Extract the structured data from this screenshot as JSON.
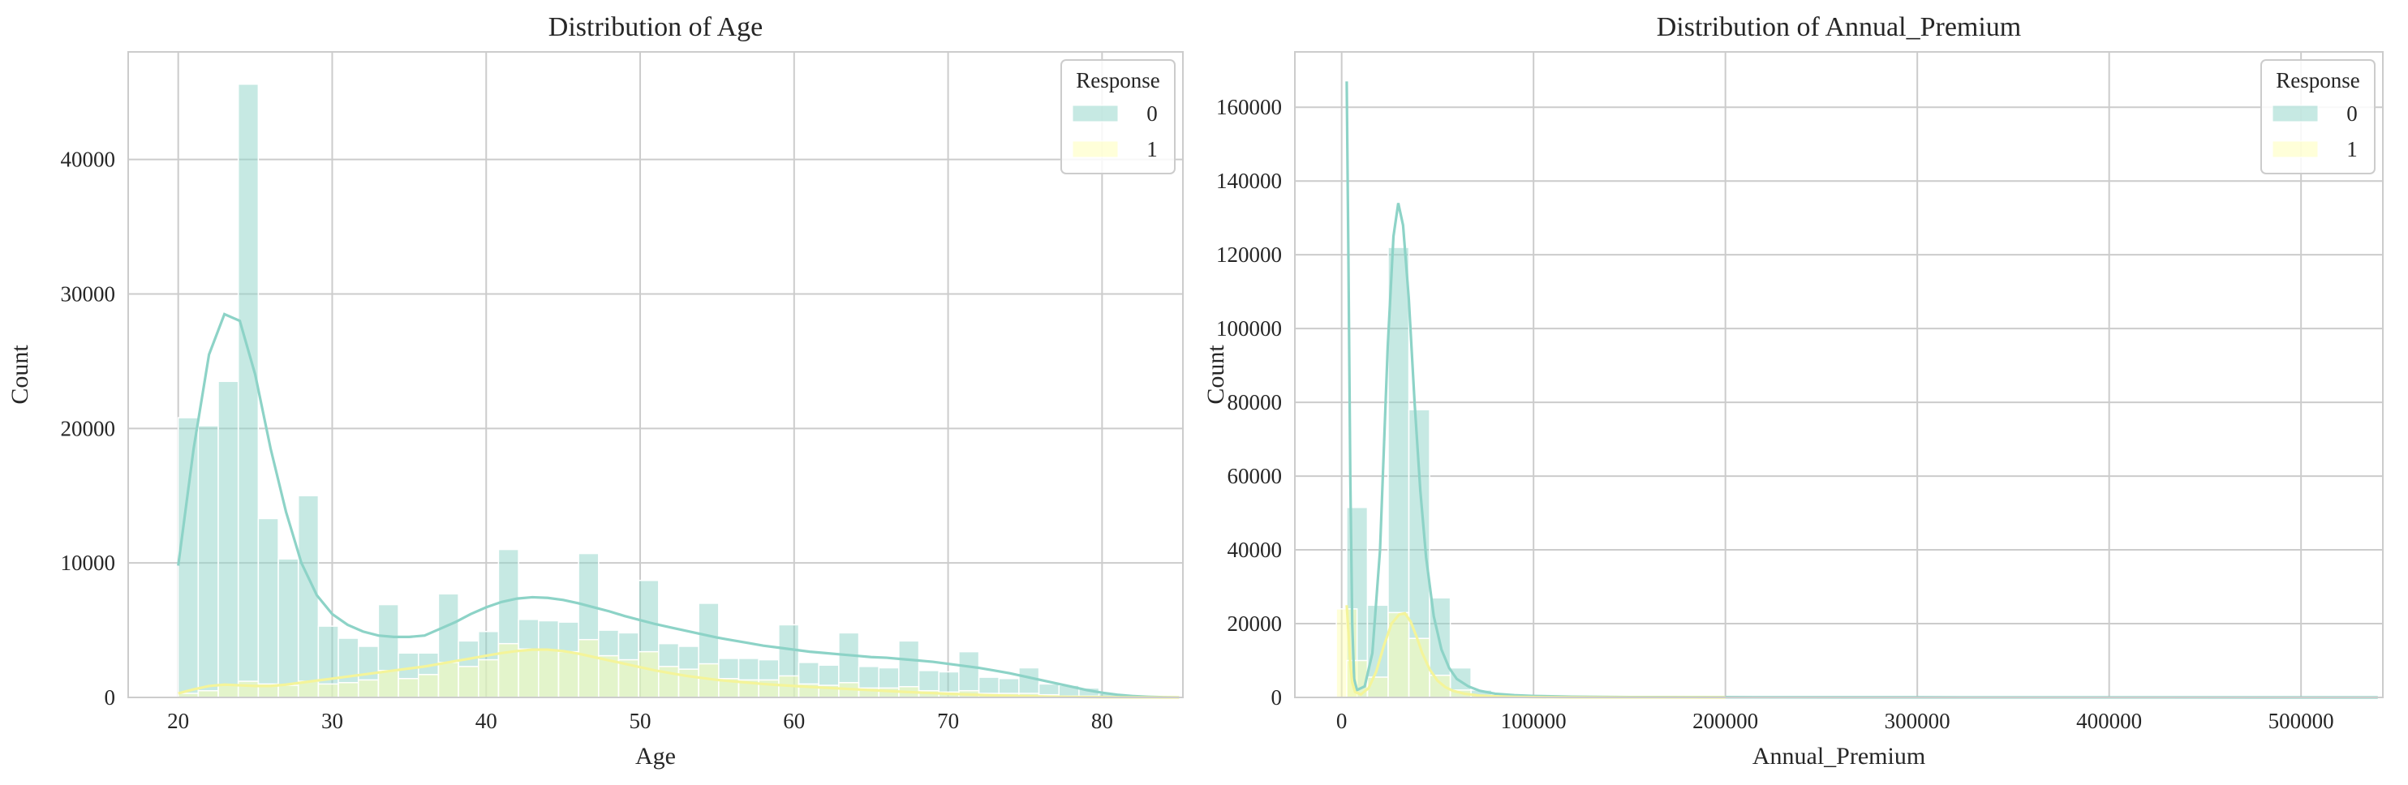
{
  "chart_data": [
    {
      "type": "histogram",
      "title": "Distribution of Age",
      "xlabel": "Age",
      "ylabel": "Count",
      "xlim": [
        16.75,
        85.25
      ],
      "ylim": [
        0,
        48000
      ],
      "xticks": [
        20,
        30,
        40,
        50,
        60,
        70,
        80
      ],
      "yticks": [
        0,
        10000,
        20000,
        30000,
        40000
      ],
      "xtick_labels": [
        "20",
        "30",
        "40",
        "50",
        "60",
        "70",
        "80"
      ],
      "ytick_labels": [
        "0",
        "10000",
        "20000",
        "30000",
        "40000"
      ],
      "grid": true,
      "legend": {
        "title": "Response",
        "position": "top-right",
        "entries": [
          "0",
          "1"
        ]
      },
      "bin_width": 1.3,
      "series": [
        {
          "label": "0",
          "color": "#8dd3c7",
          "x": [
            20.65,
            21.95,
            23.25,
            24.55,
            25.85,
            27.15,
            28.45,
            29.75,
            31.05,
            32.35,
            33.65,
            34.95,
            36.25,
            37.55,
            38.85,
            40.15,
            41.45,
            42.75,
            44.05,
            45.35,
            46.65,
            47.95,
            49.25,
            50.55,
            51.85,
            53.15,
            54.45,
            55.75,
            57.05,
            58.35,
            59.65,
            60.95,
            62.25,
            63.55,
            64.85,
            66.15,
            67.45,
            68.75,
            70.05,
            71.35,
            72.65,
            73.95,
            75.25,
            76.55,
            77.85,
            79.15,
            80.45,
            81.75,
            83.05,
            84.35
          ],
          "counts": [
            20800,
            20200,
            23500,
            45600,
            13300,
            10300,
            15000,
            5300,
            4400,
            3800,
            6900,
            3300,
            3300,
            7700,
            4200,
            4900,
            11000,
            5800,
            5700,
            5600,
            10700,
            5000,
            4800,
            8700,
            4000,
            3800,
            7000,
            2900,
            2900,
            2800,
            5400,
            2600,
            2400,
            4800,
            2300,
            2200,
            4200,
            2000,
            1900,
            3400,
            1500,
            1400,
            2200,
            1000,
            900,
            700,
            300,
            100,
            40,
            10
          ],
          "kde": [
            [
              20,
              9800
            ],
            [
              21,
              18500
            ],
            [
              22,
              25500
            ],
            [
              23,
              28500
            ],
            [
              24,
              28000
            ],
            [
              25,
              24000
            ],
            [
              26,
              18500
            ],
            [
              27,
              13800
            ],
            [
              28,
              10000
            ],
            [
              29,
              7600
            ],
            [
              30,
              6200
            ],
            [
              31,
              5400
            ],
            [
              32,
              4900
            ],
            [
              33,
              4600
            ],
            [
              34,
              4500
            ],
            [
              35,
              4500
            ],
            [
              36,
              4600
            ],
            [
              37,
              5100
            ],
            [
              38,
              5600
            ],
            [
              39,
              6200
            ],
            [
              40,
              6700
            ],
            [
              41,
              7100
            ],
            [
              42,
              7350
            ],
            [
              43,
              7450
            ],
            [
              44,
              7400
            ],
            [
              45,
              7250
            ],
            [
              46,
              7000
            ],
            [
              47,
              6700
            ],
            [
              48,
              6400
            ],
            [
              49,
              6050
            ],
            [
              50,
              5750
            ],
            [
              51,
              5450
            ],
            [
              52,
              5200
            ],
            [
              53,
              4950
            ],
            [
              54,
              4700
            ],
            [
              55,
              4450
            ],
            [
              56,
              4250
            ],
            [
              57,
              4050
            ],
            [
              58,
              3850
            ],
            [
              59,
              3700
            ],
            [
              60,
              3550
            ],
            [
              61,
              3400
            ],
            [
              62,
              3300
            ],
            [
              63,
              3200
            ],
            [
              64,
              3100
            ],
            [
              65,
              3000
            ],
            [
              66,
              2950
            ],
            [
              67,
              2850
            ],
            [
              68,
              2750
            ],
            [
              69,
              2650
            ],
            [
              70,
              2500
            ],
            [
              71,
              2350
            ],
            [
              72,
              2200
            ],
            [
              73,
              2000
            ],
            [
              74,
              1800
            ],
            [
              75,
              1550
            ],
            [
              76,
              1300
            ],
            [
              77,
              1050
            ],
            [
              78,
              800
            ],
            [
              79,
              550
            ],
            [
              80,
              350
            ],
            [
              81,
              200
            ],
            [
              82,
              100
            ],
            [
              83,
              50
            ],
            [
              84,
              20
            ],
            [
              85,
              5
            ]
          ]
        },
        {
          "label": "1",
          "color": "#ffffb3",
          "x": [
            20.65,
            21.95,
            23.25,
            24.55,
            25.85,
            27.15,
            28.45,
            29.75,
            31.05,
            32.35,
            33.65,
            34.95,
            36.25,
            37.55,
            38.85,
            40.15,
            41.45,
            42.75,
            44.05,
            45.35,
            46.65,
            47.95,
            49.25,
            50.55,
            51.85,
            53.15,
            54.45,
            55.75,
            57.05,
            58.35,
            59.65,
            60.95,
            62.25,
            63.55,
            64.85,
            66.15,
            67.45,
            68.75,
            70.05,
            71.35,
            72.65,
            73.95,
            75.25,
            76.55,
            77.85,
            79.15,
            80.45,
            81.75,
            83.05,
            84.35
          ],
          "counts": [
            300,
            500,
            900,
            1200,
            1000,
            900,
            1200,
            1000,
            1100,
            1300,
            2000,
            1400,
            1700,
            2600,
            2300,
            2800,
            4000,
            3600,
            3500,
            3400,
            4300,
            3100,
            2800,
            3400,
            2300,
            2100,
            2500,
            1400,
            1300,
            1300,
            1600,
            1000,
            900,
            1100,
            700,
            700,
            800,
            500,
            400,
            500,
            300,
            300,
            300,
            200,
            100,
            100,
            50,
            20,
            10,
            5
          ],
          "kde": [
            [
              20,
              300
            ],
            [
              21,
              600
            ],
            [
              22,
              850
            ],
            [
              23,
              950
            ],
            [
              24,
              900
            ],
            [
              25,
              850
            ],
            [
              26,
              850
            ],
            [
              27,
              950
            ],
            [
              28,
              1100
            ],
            [
              29,
              1250
            ],
            [
              30,
              1400
            ],
            [
              31,
              1550
            ],
            [
              32,
              1700
            ],
            [
              33,
              1850
            ],
            [
              34,
              2000
            ],
            [
              35,
              2150
            ],
            [
              36,
              2300
            ],
            [
              37,
              2500
            ],
            [
              38,
              2700
            ],
            [
              39,
              2900
            ],
            [
              40,
              3100
            ],
            [
              41,
              3300
            ],
            [
              42,
              3450
            ],
            [
              43,
              3550
            ],
            [
              44,
              3550
            ],
            [
              45,
              3450
            ],
            [
              46,
              3250
            ],
            [
              47,
              3000
            ],
            [
              48,
              2750
            ],
            [
              49,
              2500
            ],
            [
              50,
              2250
            ],
            [
              51,
              2000
            ],
            [
              52,
              1800
            ],
            [
              53,
              1600
            ],
            [
              54,
              1450
            ],
            [
              55,
              1300
            ],
            [
              56,
              1200
            ],
            [
              57,
              1100
            ],
            [
              58,
              1000
            ],
            [
              59,
              920
            ],
            [
              60,
              850
            ],
            [
              61,
              780
            ],
            [
              62,
              720
            ],
            [
              63,
              660
            ],
            [
              64,
              600
            ],
            [
              65,
              540
            ],
            [
              66,
              480
            ],
            [
              67,
              420
            ],
            [
              68,
              370
            ],
            [
              69,
              320
            ],
            [
              70,
              270
            ],
            [
              71,
              230
            ],
            [
              72,
              190
            ],
            [
              73,
              150
            ],
            [
              74,
              120
            ],
            [
              75,
              90
            ],
            [
              76,
              70
            ],
            [
              77,
              50
            ],
            [
              78,
              35
            ],
            [
              79,
              25
            ],
            [
              80,
              15
            ],
            [
              81,
              10
            ],
            [
              82,
              5
            ],
            [
              83,
              3
            ],
            [
              84,
              2
            ],
            [
              85,
              1
            ]
          ]
        }
      ]
    },
    {
      "type": "histogram",
      "title": "Distribution of Annual_Premium",
      "xlabel": "Annual_Premium",
      "ylabel": "Count",
      "xlim": [
        -24390,
        542640
      ],
      "ylim": [
        0,
        175000
      ],
      "xticks": [
        0,
        100000,
        200000,
        300000,
        400000,
        500000
      ],
      "yticks": [
        0,
        20000,
        40000,
        60000,
        80000,
        100000,
        120000,
        140000,
        160000
      ],
      "xtick_labels": [
        "0",
        "100000",
        "200000",
        "300000",
        "400000",
        "500000"
      ],
      "ytick_labels": [
        "0",
        "20000",
        "40000",
        "60000",
        "80000",
        "100000",
        "120000",
        "140000",
        "160000"
      ],
      "grid": true,
      "legend": {
        "title": "Response",
        "position": "top-right",
        "entries": [
          "0",
          "1"
        ]
      },
      "bin_width": 10800,
      "series": [
        {
          "label": "0",
          "color": "#8dd3c7",
          "x": [
            8030,
            18830,
            29630,
            40430,
            51230,
            62030,
            72830,
            83630,
            94430,
            105230,
            116030,
            126830,
            137630
          ],
          "counts": [
            51500,
            25000,
            122000,
            78000,
            27000,
            8000,
            2000,
            700,
            300,
            150,
            80,
            40,
            20
          ],
          "kde": [
            [
              2630,
              167000
            ],
            [
              3500,
              120000
            ],
            [
              4500,
              60000
            ],
            [
              5500,
              20000
            ],
            [
              6500,
              5000
            ],
            [
              8000,
              2000
            ],
            [
              12000,
              3000
            ],
            [
              16000,
              12000
            ],
            [
              20000,
              40000
            ],
            [
              24000,
              95000
            ],
            [
              27000,
              125000
            ],
            [
              29500,
              134000
            ],
            [
              32000,
              128000
            ],
            [
              35000,
              108000
            ],
            [
              38000,
              80000
            ],
            [
              41000,
              56000
            ],
            [
              44000,
              38000
            ],
            [
              48000,
              22000
            ],
            [
              52000,
              13000
            ],
            [
              56000,
              8000
            ],
            [
              60000,
              5000
            ],
            [
              66000,
              3000
            ],
            [
              72000,
              1800
            ],
            [
              80000,
              1000
            ],
            [
              90000,
              600
            ],
            [
              100000,
              400
            ],
            [
              120000,
              200
            ],
            [
              150000,
              100
            ],
            [
              200000,
              50
            ],
            [
              300000,
              20
            ],
            [
              400000,
              10
            ],
            [
              540000,
              0
            ]
          ]
        },
        {
          "label": "1",
          "color": "#ffffb3",
          "x": [
            2630,
            8030,
            18830,
            29630,
            40430,
            51230,
            62030,
            72830,
            83630,
            94430
          ],
          "counts": [
            24000,
            10000,
            5500,
            23000,
            16000,
            6000,
            2000,
            600,
            200,
            80
          ],
          "kde": [
            [
              2630,
              25000
            ],
            [
              3500,
              18000
            ],
            [
              4500,
              9000
            ],
            [
              5500,
              4000
            ],
            [
              7000,
              1500
            ],
            [
              10000,
              800
            ],
            [
              14000,
              2500
            ],
            [
              18000,
              7000
            ],
            [
              22000,
              14000
            ],
            [
              26000,
              20000
            ],
            [
              30000,
              22500
            ],
            [
              33000,
              22800
            ],
            [
              36000,
              20500
            ],
            [
              39000,
              16500
            ],
            [
              42000,
              12000
            ],
            [
              46000,
              7500
            ],
            [
              50000,
              4500
            ],
            [
              54000,
              2800
            ],
            [
              58000,
              1800
            ],
            [
              64000,
              1000
            ],
            [
              72000,
              500
            ],
            [
              80000,
              300
            ],
            [
              90000,
              150
            ],
            [
              100000,
              80
            ],
            [
              120000,
              30
            ],
            [
              150000,
              10
            ],
            [
              200000,
              0
            ]
          ]
        }
      ]
    }
  ]
}
